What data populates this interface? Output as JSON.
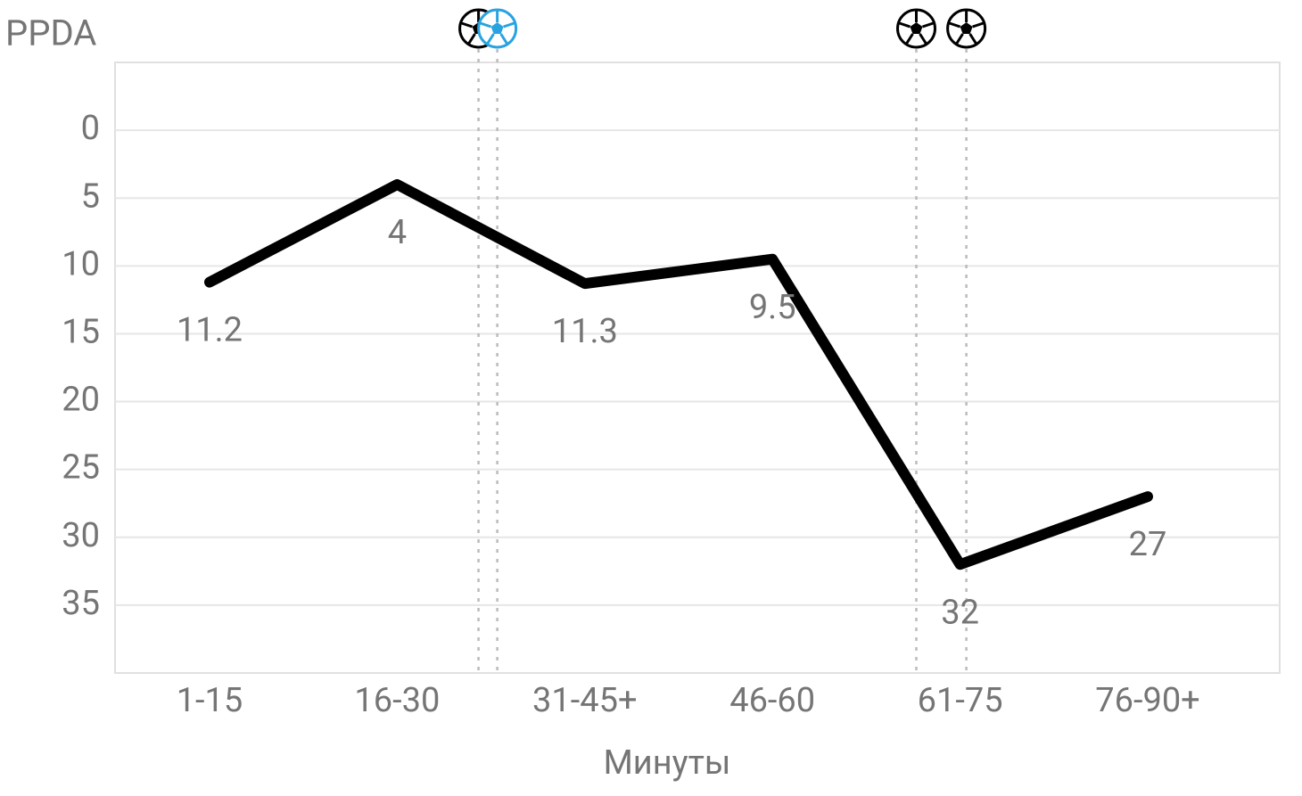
{
  "chart_data": {
    "type": "line",
    "y_axis_label": "PPDA",
    "x_axis_label": "Минуты",
    "categories": [
      "1-15",
      "16-30",
      "31-45+",
      "46-60",
      "61-75",
      "76-90+"
    ],
    "series": [
      {
        "name": "PPDA",
        "color": "#000000",
        "values": [
          11.2,
          4,
          11.3,
          9.5,
          32,
          27
        ]
      }
    ],
    "ylim": [
      40,
      -5
    ],
    "yticks": [
      0,
      5,
      10,
      15,
      20,
      25,
      30,
      35
    ],
    "y_inverted": true,
    "grid": true,
    "goals": [
      {
        "minute": 29.5,
        "color": "#000000"
      },
      {
        "minute": 31,
        "color": "#29a3e0"
      },
      {
        "minute": 64.5,
        "color": "#000000"
      },
      {
        "minute": 68.5,
        "color": "#000000"
      }
    ]
  }
}
